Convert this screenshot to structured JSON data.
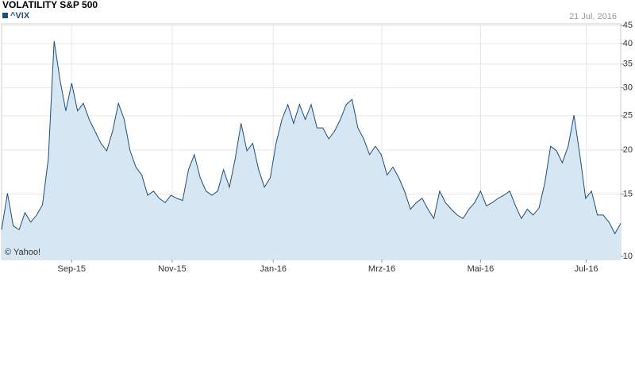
{
  "chart_data": {
    "type": "area",
    "title": "VOLATILITY S&P 500",
    "date": "21 Jul, 2016",
    "credit": "© Yahoo!",
    "log_scale": true,
    "grid": true,
    "legend": "top-left",
    "series": [
      {
        "name": "^VIX",
        "color": "#1d4f7a",
        "fill": "#d6e6f2",
        "values": [
          11.9,
          15.1,
          12.2,
          11.9,
          13.3,
          12.5,
          13.1,
          14.0,
          18.9,
          40.7,
          31.6,
          25.8,
          30.9,
          25.8,
          27.1,
          24.4,
          22.6,
          20.9,
          19.9,
          22.6,
          27.1,
          24.4,
          19.9,
          17.9,
          17.0,
          14.9,
          15.3,
          14.6,
          14.2,
          14.9,
          14.6,
          14.4,
          17.6,
          19.4,
          16.7,
          15.3,
          14.9,
          15.3,
          17.6,
          15.7,
          18.9,
          23.8,
          19.9,
          20.9,
          17.6,
          15.7,
          16.7,
          20.9,
          24.4,
          26.9,
          23.8,
          26.9,
          24.4,
          26.9,
          23.1,
          23.1,
          21.5,
          22.6,
          24.4,
          26.9,
          27.8,
          23.1,
          21.5,
          19.4,
          20.5,
          19.4,
          17.0,
          17.9,
          16.7,
          15.3,
          13.6,
          14.2,
          14.6,
          13.6,
          12.8,
          15.3,
          14.2,
          13.6,
          13.1,
          12.8,
          13.6,
          14.2,
          15.3,
          13.9,
          14.2,
          14.6,
          14.9,
          15.3,
          13.9,
          12.8,
          13.6,
          13.1,
          13.7,
          16.1,
          20.5,
          19.9,
          18.4,
          20.5,
          25.1,
          19.4,
          14.6,
          15.3,
          13.1,
          13.1,
          12.5,
          11.6,
          12.4
        ]
      }
    ],
    "xlim": [
      0,
      106
    ],
    "xticks": [
      {
        "value": 12,
        "label": "Sep-15"
      },
      {
        "value": 29.2,
        "label": "Nov-15"
      },
      {
        "value": 46.5,
        "label": "Jan-16"
      },
      {
        "value": 65.1,
        "label": "Mrz-16"
      },
      {
        "value": 82,
        "label": "Mai-16"
      },
      {
        "value": 100.1,
        "label": "Jul-16"
      }
    ],
    "ylim": [
      9.8,
      45.5
    ],
    "yticks": [
      10,
      15,
      20,
      25,
      30,
      35,
      40,
      45
    ]
  }
}
